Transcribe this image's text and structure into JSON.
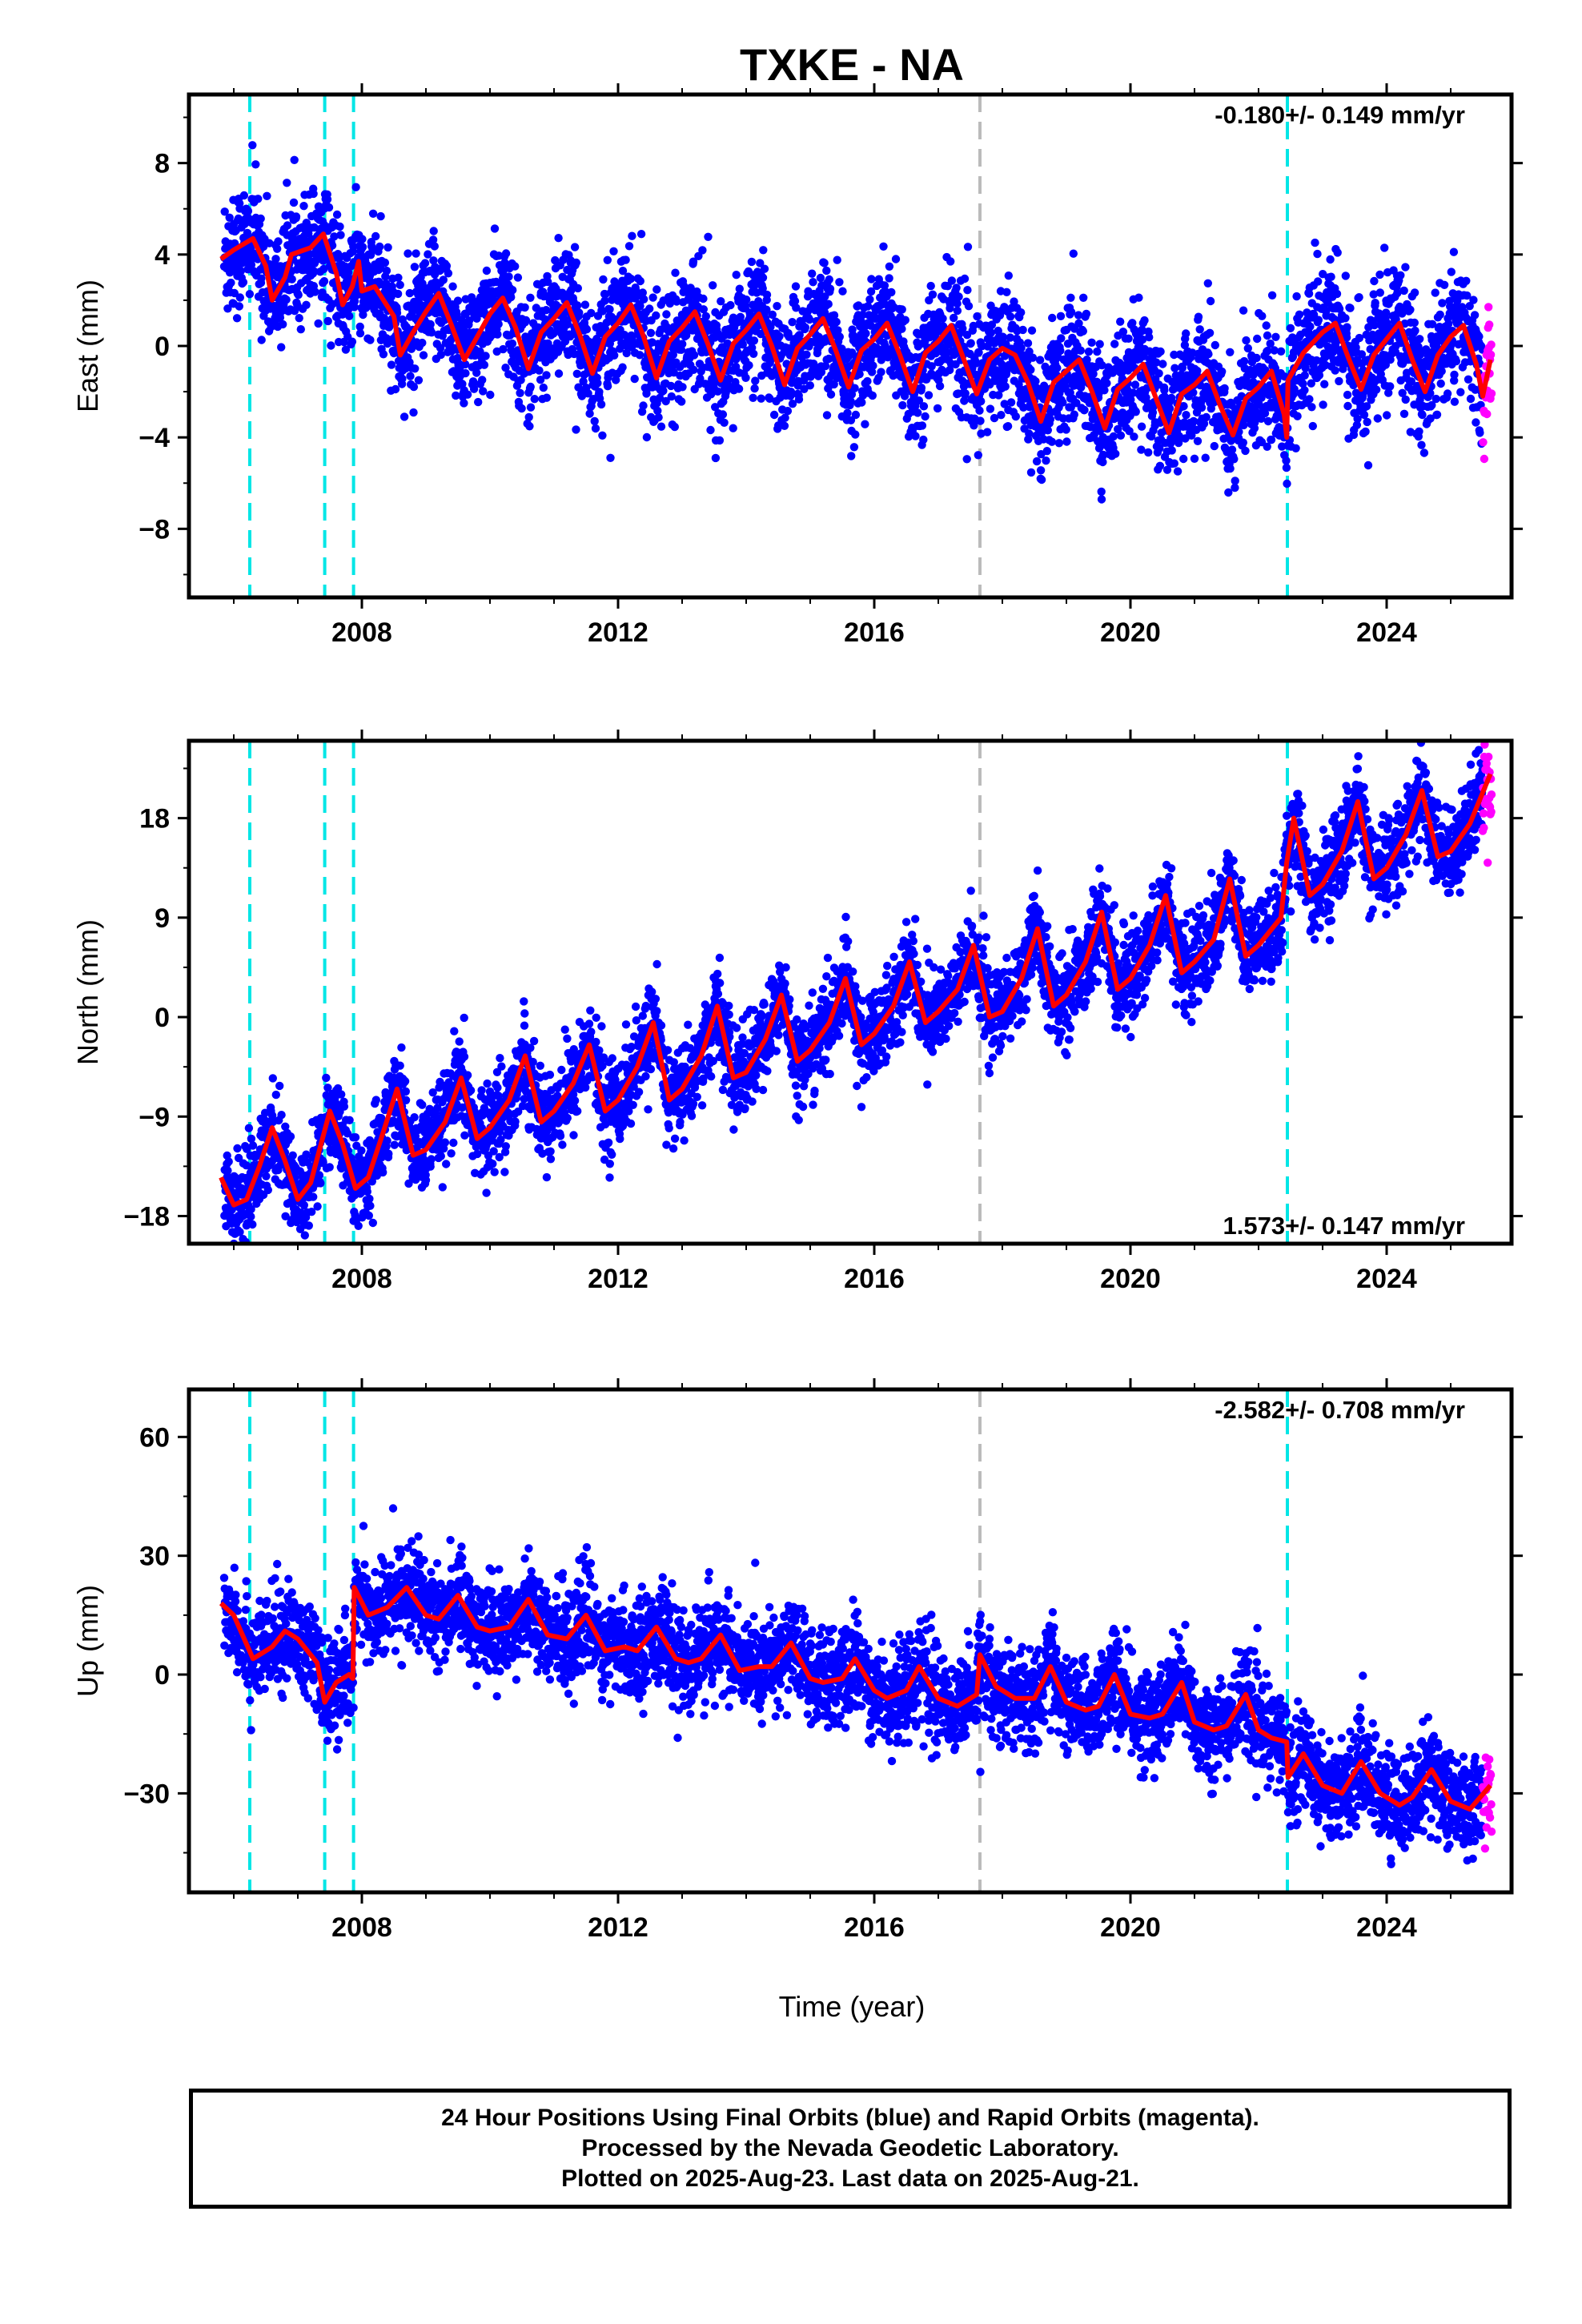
{
  "chart_data": {
    "type": "scatter",
    "title": "TXKE - NA",
    "xlabel": "Time (year)",
    "xlim": [
      2005.3,
      2025.95
    ],
    "x_ticks": [
      2008,
      2012,
      2016,
      2020,
      2024
    ],
    "x_tick_labels": [
      "2008",
      "2012",
      "2016",
      "2020",
      "2024"
    ],
    "event_lines": [
      {
        "x": 2006.25,
        "color": "#00e6e6",
        "style": "dashed"
      },
      {
        "x": 2007.42,
        "color": "#00e6e6",
        "style": "dashed"
      },
      {
        "x": 2007.87,
        "color": "#00e6e6",
        "style": "dashed"
      },
      {
        "x": 2017.65,
        "color": "#bbbbbb",
        "style": "dashed"
      },
      {
        "x": 2022.45,
        "color": "#00e6e6",
        "style": "dashed"
      }
    ],
    "colors": {
      "final": "#0000ff",
      "rapid": "#ff00ff",
      "model": "#ff0000",
      "frame": "#000000"
    },
    "panels": [
      {
        "name": "east",
        "ylabel": "East (mm)",
        "ylim": [
          -11,
          11
        ],
        "y_ticks": [
          -8,
          -4,
          0,
          4,
          8
        ],
        "y_tick_labels": [
          "−8",
          "−4",
          "0",
          "4",
          "8"
        ],
        "rate_label": "-0.180+/- 0.149 mm/yr",
        "rate_position": "top-right",
        "model": [
          [
            2005.8,
            3.8
          ],
          [
            2006.0,
            4.2
          ],
          [
            2006.3,
            4.7
          ],
          [
            2006.5,
            3.5
          ],
          [
            2006.6,
            2.0
          ],
          [
            2006.8,
            3.0
          ],
          [
            2006.9,
            4.0
          ],
          [
            2007.2,
            4.3
          ],
          [
            2007.4,
            4.9
          ],
          [
            2007.6,
            3.2
          ],
          [
            2007.7,
            1.8
          ],
          [
            2007.85,
            2.6
          ],
          [
            2007.95,
            3.7
          ],
          [
            2008.0,
            2.4
          ],
          [
            2008.2,
            2.6
          ],
          [
            2008.5,
            1.3
          ],
          [
            2008.6,
            -0.4
          ],
          [
            2008.8,
            0.6
          ],
          [
            2009.0,
            1.5
          ],
          [
            2009.2,
            2.3
          ],
          [
            2009.4,
            0.9
          ],
          [
            2009.6,
            -0.6
          ],
          [
            2009.8,
            0.4
          ],
          [
            2010.0,
            1.4
          ],
          [
            2010.2,
            2.1
          ],
          [
            2010.4,
            0.8
          ],
          [
            2010.6,
            -1.0
          ],
          [
            2010.8,
            0.6
          ],
          [
            2011.0,
            1.2
          ],
          [
            2011.2,
            1.9
          ],
          [
            2011.4,
            0.5
          ],
          [
            2011.6,
            -1.2
          ],
          [
            2011.8,
            0.4
          ],
          [
            2012.0,
            1.0
          ],
          [
            2012.2,
            1.8
          ],
          [
            2012.4,
            0.4
          ],
          [
            2012.6,
            -1.4
          ],
          [
            2012.8,
            0.2
          ],
          [
            2013.0,
            0.8
          ],
          [
            2013.2,
            1.5
          ],
          [
            2013.4,
            0.1
          ],
          [
            2013.6,
            -1.5
          ],
          [
            2013.8,
            0.1
          ],
          [
            2014.0,
            0.7
          ],
          [
            2014.2,
            1.4
          ],
          [
            2014.4,
            0.0
          ],
          [
            2014.6,
            -1.7
          ],
          [
            2014.8,
            -0.1
          ],
          [
            2015.0,
            0.5
          ],
          [
            2015.2,
            1.2
          ],
          [
            2015.4,
            -0.2
          ],
          [
            2015.6,
            -1.8
          ],
          [
            2015.8,
            -0.2
          ],
          [
            2016.0,
            0.3
          ],
          [
            2016.2,
            1.0
          ],
          [
            2016.4,
            -0.4
          ],
          [
            2016.6,
            -2.0
          ],
          [
            2016.8,
            -0.3
          ],
          [
            2017.0,
            0.2
          ],
          [
            2017.2,
            0.9
          ],
          [
            2017.4,
            -0.6
          ],
          [
            2017.6,
            -2.1
          ],
          [
            2017.8,
            -0.6
          ],
          [
            2018.0,
            -0.1
          ],
          [
            2018.2,
            -0.4
          ],
          [
            2018.4,
            -1.6
          ],
          [
            2018.6,
            -3.3
          ],
          [
            2018.8,
            -1.6
          ],
          [
            2019.0,
            -1.1
          ],
          [
            2019.2,
            -0.6
          ],
          [
            2019.4,
            -2.0
          ],
          [
            2019.6,
            -3.6
          ],
          [
            2019.8,
            -1.9
          ],
          [
            2020.0,
            -1.4
          ],
          [
            2020.2,
            -0.8
          ],
          [
            2020.4,
            -2.3
          ],
          [
            2020.6,
            -3.8
          ],
          [
            2020.8,
            -2.1
          ],
          [
            2021.0,
            -1.7
          ],
          [
            2021.2,
            -1.1
          ],
          [
            2021.4,
            -2.6
          ],
          [
            2021.6,
            -3.9
          ],
          [
            2021.8,
            -2.3
          ],
          [
            2022.0,
            -1.8
          ],
          [
            2022.2,
            -1.1
          ],
          [
            2022.4,
            -3.0
          ],
          [
            2022.44,
            -4.0
          ],
          [
            2022.46,
            -1.5
          ],
          [
            2022.7,
            -0.3
          ],
          [
            2023.0,
            0.6
          ],
          [
            2023.2,
            1.0
          ],
          [
            2023.4,
            -0.5
          ],
          [
            2023.6,
            -1.9
          ],
          [
            2023.8,
            -0.4
          ],
          [
            2024.0,
            0.3
          ],
          [
            2024.2,
            1.0
          ],
          [
            2024.4,
            -0.6
          ],
          [
            2024.6,
            -2.0
          ],
          [
            2024.8,
            -0.4
          ],
          [
            2025.0,
            0.4
          ],
          [
            2025.2,
            0.9
          ],
          [
            2025.4,
            -0.8
          ],
          [
            2025.5,
            -2.2
          ],
          [
            2025.62,
            -0.6
          ]
        ]
      },
      {
        "name": "north",
        "ylabel": "North (mm)",
        "ylim": [
          -20.5,
          25
        ],
        "y_ticks": [
          -18,
          -9,
          0,
          9,
          18
        ],
        "y_tick_labels": [
          "−18",
          "−9",
          "0",
          "9",
          "18"
        ],
        "rate_label": "1.573+/- 0.147 mm/yr",
        "rate_position": "bottom-right",
        "model": [
          [
            2005.8,
            -14.5
          ],
          [
            2006.0,
            -17.0
          ],
          [
            2006.2,
            -16.5
          ],
          [
            2006.4,
            -13.5
          ],
          [
            2006.6,
            -10.0
          ],
          [
            2006.8,
            -13.0
          ],
          [
            2007.0,
            -16.5
          ],
          [
            2007.2,
            -15.0
          ],
          [
            2007.5,
            -8.5
          ],
          [
            2007.7,
            -11.5
          ],
          [
            2007.9,
            -15.5
          ],
          [
            2008.1,
            -14.5
          ],
          [
            2008.3,
            -11.0
          ],
          [
            2008.55,
            -6.5
          ],
          [
            2008.8,
            -12.5
          ],
          [
            2009.0,
            -12.0
          ],
          [
            2009.3,
            -9.5
          ],
          [
            2009.55,
            -5.5
          ],
          [
            2009.8,
            -11.0
          ],
          [
            2010.0,
            -10.0
          ],
          [
            2010.3,
            -7.5
          ],
          [
            2010.55,
            -3.5
          ],
          [
            2010.8,
            -9.5
          ],
          [
            2011.0,
            -8.5
          ],
          [
            2011.3,
            -6.0
          ],
          [
            2011.55,
            -2.5
          ],
          [
            2011.8,
            -8.5
          ],
          [
            2012.0,
            -7.5
          ],
          [
            2012.3,
            -4.5
          ],
          [
            2012.55,
            -0.5
          ],
          [
            2012.8,
            -7.5
          ],
          [
            2013.0,
            -6.5
          ],
          [
            2013.3,
            -3.5
          ],
          [
            2013.55,
            1.0
          ],
          [
            2013.8,
            -5.5
          ],
          [
            2014.0,
            -5.0
          ],
          [
            2014.3,
            -2.0
          ],
          [
            2014.55,
            2.0
          ],
          [
            2014.8,
            -4.0
          ],
          [
            2015.0,
            -3.0
          ],
          [
            2015.3,
            -0.5
          ],
          [
            2015.55,
            3.5
          ],
          [
            2015.8,
            -2.5
          ],
          [
            2016.0,
            -1.5
          ],
          [
            2016.3,
            1.0
          ],
          [
            2016.55,
            5.0
          ],
          [
            2016.8,
            -0.5
          ],
          [
            2017.0,
            0.5
          ],
          [
            2017.3,
            2.5
          ],
          [
            2017.55,
            6.5
          ],
          [
            2017.8,
            0.0
          ],
          [
            2018.0,
            0.5
          ],
          [
            2018.3,
            3.5
          ],
          [
            2018.55,
            8.0
          ],
          [
            2018.8,
            1.0
          ],
          [
            2019.0,
            2.0
          ],
          [
            2019.3,
            5.0
          ],
          [
            2019.55,
            9.5
          ],
          [
            2019.8,
            2.5
          ],
          [
            2020.0,
            3.5
          ],
          [
            2020.3,
            6.5
          ],
          [
            2020.55,
            11.0
          ],
          [
            2020.8,
            4.0
          ],
          [
            2021.0,
            5.0
          ],
          [
            2021.3,
            7.0
          ],
          [
            2021.55,
            12.5
          ],
          [
            2021.8,
            5.5
          ],
          [
            2022.0,
            6.5
          ],
          [
            2022.35,
            9.0
          ],
          [
            2022.44,
            14.0
          ],
          [
            2022.55,
            18.0
          ],
          [
            2022.8,
            11.0
          ],
          [
            2023.0,
            12.0
          ],
          [
            2023.3,
            15.0
          ],
          [
            2023.55,
            19.5
          ],
          [
            2023.8,
            12.5
          ],
          [
            2024.0,
            13.5
          ],
          [
            2024.3,
            16.5
          ],
          [
            2024.55,
            20.5
          ],
          [
            2024.8,
            14.5
          ],
          [
            2025.0,
            15.0
          ],
          [
            2025.3,
            17.5
          ],
          [
            2025.62,
            22.0
          ]
        ]
      },
      {
        "name": "up",
        "ylabel": "Up (mm)",
        "ylim": [
          -55,
          72
        ],
        "y_ticks": [
          -30,
          0,
          30,
          60
        ],
        "y_tick_labels": [
          "−30",
          "0",
          "30",
          "60"
        ],
        "rate_label": "-2.582+/- 0.708 mm/yr",
        "rate_position": "top-right",
        "model": [
          [
            2005.8,
            18
          ],
          [
            2006.0,
            15
          ],
          [
            2006.3,
            4
          ],
          [
            2006.6,
            7
          ],
          [
            2006.8,
            11
          ],
          [
            2007.0,
            9
          ],
          [
            2007.3,
            3
          ],
          [
            2007.42,
            -7
          ],
          [
            2007.6,
            -2
          ],
          [
            2007.8,
            0
          ],
          [
            2007.86,
            -1
          ],
          [
            2007.88,
            22
          ],
          [
            2008.1,
            15
          ],
          [
            2008.4,
            17
          ],
          [
            2008.7,
            22
          ],
          [
            2009.0,
            15
          ],
          [
            2009.2,
            14
          ],
          [
            2009.5,
            20
          ],
          [
            2009.8,
            12
          ],
          [
            2010.0,
            11
          ],
          [
            2010.3,
            12
          ],
          [
            2010.6,
            19
          ],
          [
            2010.9,
            10
          ],
          [
            2011.2,
            9
          ],
          [
            2011.5,
            15
          ],
          [
            2011.8,
            6
          ],
          [
            2012.1,
            7
          ],
          [
            2012.3,
            6
          ],
          [
            2012.6,
            12
          ],
          [
            2012.9,
            4
          ],
          [
            2013.1,
            3
          ],
          [
            2013.3,
            4
          ],
          [
            2013.6,
            10
          ],
          [
            2013.9,
            1
          ],
          [
            2014.2,
            2
          ],
          [
            2014.4,
            2
          ],
          [
            2014.7,
            8
          ],
          [
            2015.0,
            -1
          ],
          [
            2015.2,
            -2
          ],
          [
            2015.5,
            -1
          ],
          [
            2015.7,
            4
          ],
          [
            2016.0,
            -4
          ],
          [
            2016.2,
            -6
          ],
          [
            2016.5,
            -4
          ],
          [
            2016.7,
            2
          ],
          [
            2017.0,
            -6
          ],
          [
            2017.3,
            -8
          ],
          [
            2017.6,
            -5
          ],
          [
            2017.65,
            5
          ],
          [
            2017.9,
            -3
          ],
          [
            2018.2,
            -6
          ],
          [
            2018.5,
            -6
          ],
          [
            2018.75,
            2
          ],
          [
            2019.0,
            -7
          ],
          [
            2019.3,
            -9
          ],
          [
            2019.5,
            -8
          ],
          [
            2019.75,
            0
          ],
          [
            2020.0,
            -10
          ],
          [
            2020.3,
            -11
          ],
          [
            2020.5,
            -10
          ],
          [
            2020.8,
            -2
          ],
          [
            2021.0,
            -12
          ],
          [
            2021.3,
            -14
          ],
          [
            2021.5,
            -13
          ],
          [
            2021.8,
            -5
          ],
          [
            2022.0,
            -14
          ],
          [
            2022.2,
            -16
          ],
          [
            2022.44,
            -17
          ],
          [
            2022.46,
            -26
          ],
          [
            2022.7,
            -20
          ],
          [
            2023.0,
            -28
          ],
          [
            2023.3,
            -30
          ],
          [
            2023.6,
            -22
          ],
          [
            2023.9,
            -30
          ],
          [
            2024.2,
            -33
          ],
          [
            2024.4,
            -31
          ],
          [
            2024.7,
            -24
          ],
          [
            2025.0,
            -32
          ],
          [
            2025.3,
            -34
          ],
          [
            2025.62,
            -28
          ]
        ]
      }
    ],
    "footer_lines": [
      "24 Hour Positions Using Final Orbits (blue) and Rapid Orbits (magenta).",
      "Processed by the Nevada Geodetic Laboratory.",
      "Plotted on 2025-Aug-23. Last data on 2025-Aug-21."
    ]
  }
}
